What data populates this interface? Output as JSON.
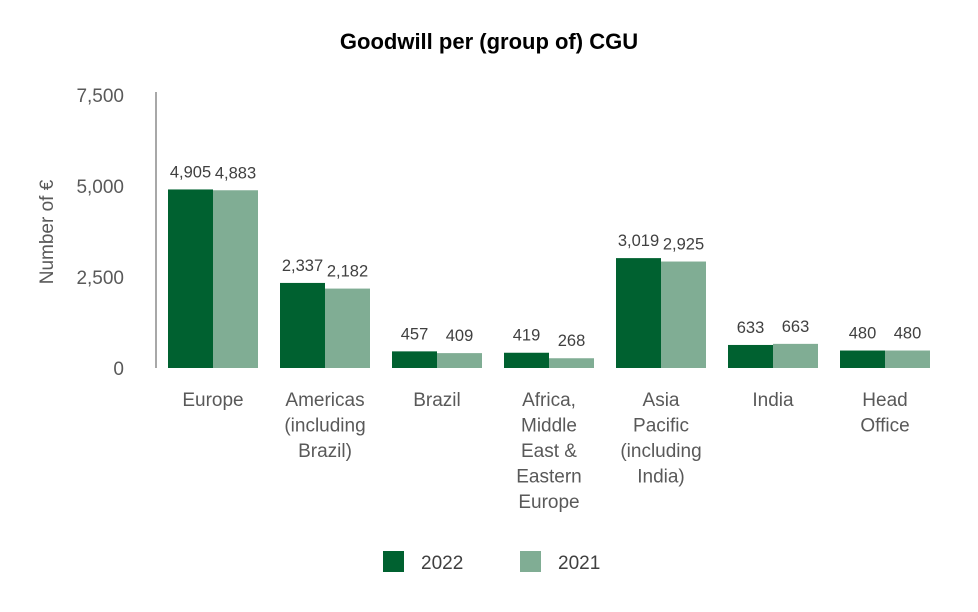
{
  "chart_data": {
    "type": "bar",
    "title": "Goodwill per (group of) CGU",
    "ylabel": "Number of €",
    "xlabel": "",
    "ylim": [
      0,
      7500
    ],
    "yticks": [
      0,
      2500,
      5000,
      7500
    ],
    "ytick_labels": [
      "0",
      "2,500",
      "5,000",
      "7,500"
    ],
    "grid": false,
    "legend": "bottom",
    "categories": [
      "Europe",
      "Americas (including Brazil)",
      "Brazil",
      "Africa, Middle East & Eastern Europe",
      "Asia Pacific (including India)",
      "India",
      "Head Office"
    ],
    "category_lines": [
      [
        "Europe"
      ],
      [
        "Americas",
        "(including",
        "Brazil)"
      ],
      [
        "Brazil"
      ],
      [
        "Africa,",
        "Middle",
        "East &",
        "Eastern",
        "Europe"
      ],
      [
        "Asia",
        "Pacific",
        "(including",
        "India)"
      ],
      [
        "India"
      ],
      [
        "Head",
        "Office"
      ]
    ],
    "series": [
      {
        "name": "2022",
        "color": "#006130",
        "values": [
          4905,
          2337,
          457,
          419,
          3019,
          633,
          480
        ],
        "labels": [
          "4,905",
          "2,337",
          "457",
          "419",
          "3,019",
          "633",
          "480"
        ]
      },
      {
        "name": "2021",
        "color": "#80AD94",
        "values": [
          4883,
          2182,
          409,
          268,
          2925,
          663,
          480
        ],
        "labels": [
          "4,883",
          "2,182",
          "409",
          "268",
          "2,925",
          "663",
          "480"
        ]
      }
    ]
  }
}
